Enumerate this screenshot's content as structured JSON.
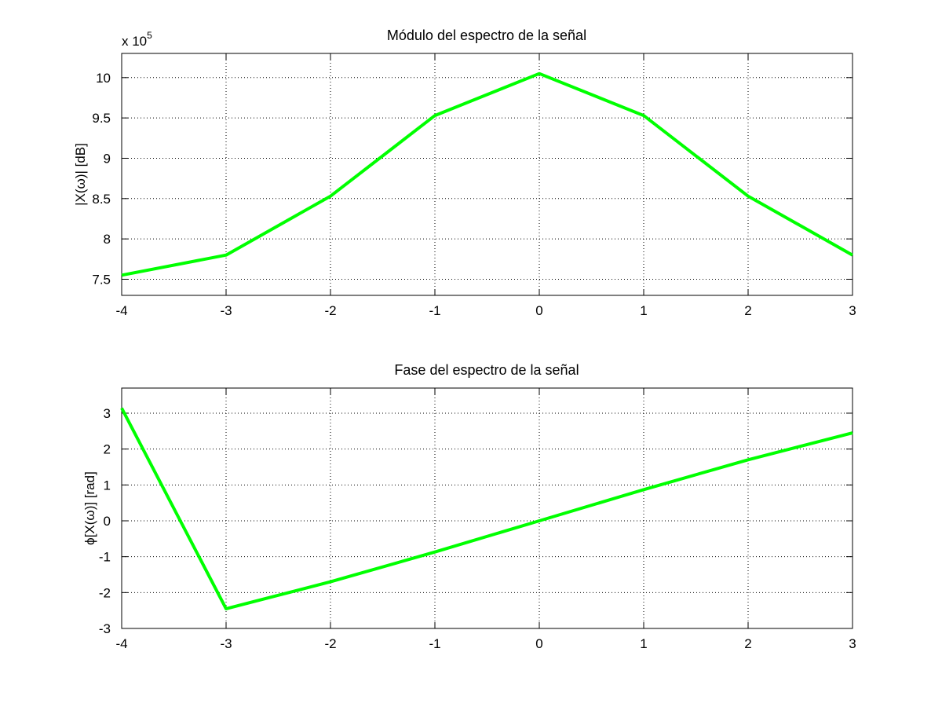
{
  "chart_data": [
    {
      "type": "line",
      "title": "Módulo del espectro de la señal",
      "xlabel": "",
      "ylabel": "|X(ω)| [dB]",
      "multiplier_base": "x 10",
      "multiplier_exponent": "5",
      "x": [
        -4,
        -3,
        -2,
        -1,
        0,
        1,
        2,
        3
      ],
      "series": [
        {
          "values": [
            7.55,
            7.8,
            8.53,
            9.53,
            10.05,
            9.53,
            8.53,
            7.8
          ]
        }
      ],
      "xlim": [
        -4,
        3
      ],
      "ylim": [
        7.3,
        10.3
      ],
      "xticks": [
        "-4",
        "-3",
        "-2",
        "-1",
        "0",
        "1",
        "2",
        "3"
      ],
      "yticks": [
        "7.5",
        "8",
        "8.5",
        "9",
        "9.5",
        "10"
      ],
      "ytick_values": [
        7.5,
        8,
        8.5,
        9,
        9.5,
        10
      ],
      "grid": true,
      "line_color": "#00ff00"
    },
    {
      "type": "line",
      "title": "Fase del espectro de la señal",
      "xlabel": "",
      "ylabel": "ϕ[X(ω)] [rad]",
      "x": [
        -4,
        -3,
        -2,
        -1,
        0,
        1,
        2,
        3
      ],
      "series": [
        {
          "values": [
            3.14,
            -2.45,
            -1.7,
            -0.87,
            0,
            0.87,
            1.7,
            2.45
          ]
        }
      ],
      "xlim": [
        -4,
        3
      ],
      "ylim": [
        -3,
        3.7
      ],
      "xticks": [
        "-4",
        "-3",
        "-2",
        "-1",
        "0",
        "1",
        "2",
        "3"
      ],
      "yticks": [
        "-3",
        "-2",
        "-1",
        "0",
        "1",
        "2",
        "3"
      ],
      "ytick_values": [
        -3,
        -2,
        -1,
        0,
        1,
        2,
        3
      ],
      "grid": true,
      "line_color": "#00ff00"
    }
  ]
}
